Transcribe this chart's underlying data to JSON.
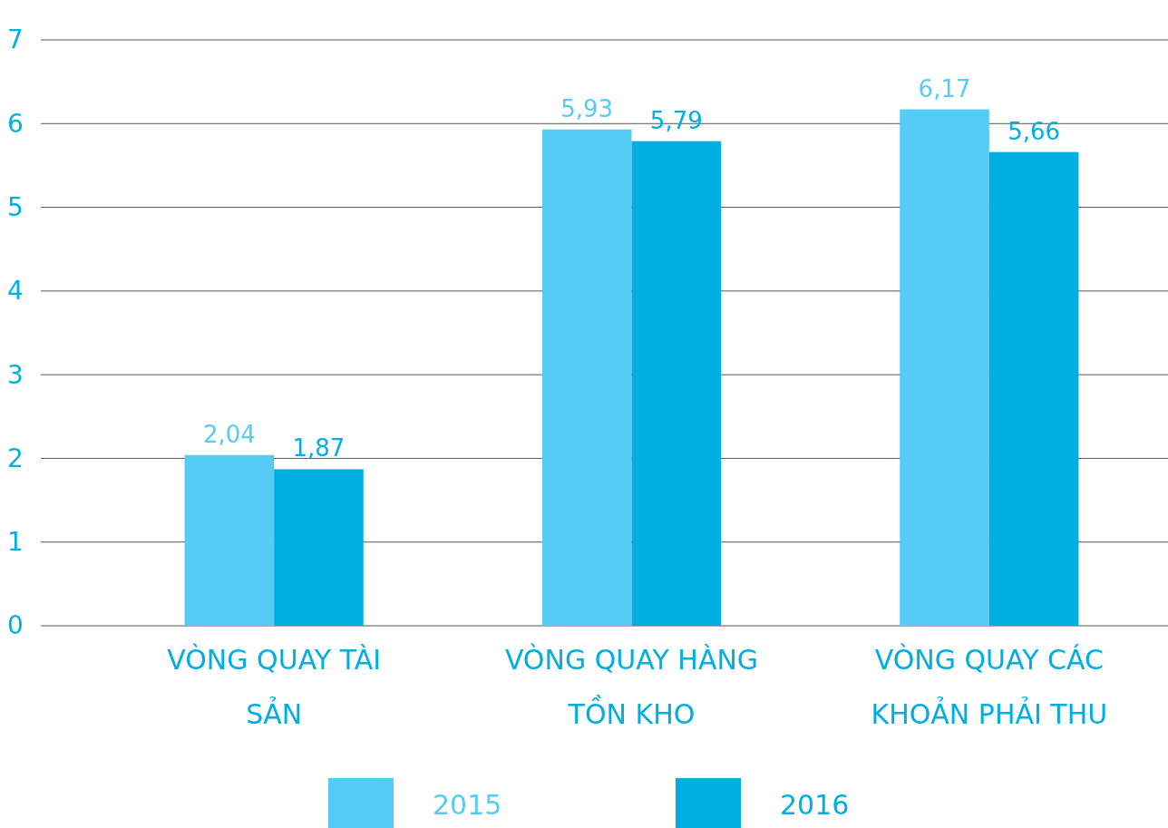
{
  "chart_data": {
    "type": "bar",
    "categories": [
      "VÒNG QUAY TÀI SẢN",
      "VÒNG QUAY HÀNG TỒN KHO",
      "VÒNG QUAY CÁC KHOẢN PHẢI THU"
    ],
    "series": [
      {
        "name": "2015",
        "color": "#56cbf5",
        "values": [
          2.04,
          5.93,
          6.17
        ],
        "value_labels": [
          "2,04",
          "5,93",
          "6,17"
        ]
      },
      {
        "name": "2016",
        "color": "#00aee2",
        "values": [
          1.87,
          5.79,
          5.66
        ],
        "value_labels": [
          "1,87",
          "5,79",
          "5,66"
        ]
      }
    ],
    "ylim": [
      0,
      7
    ],
    "yticks": [
      0,
      1,
      2,
      3,
      4,
      5,
      6,
      7
    ],
    "grid": "y",
    "legend": "bottom"
  }
}
